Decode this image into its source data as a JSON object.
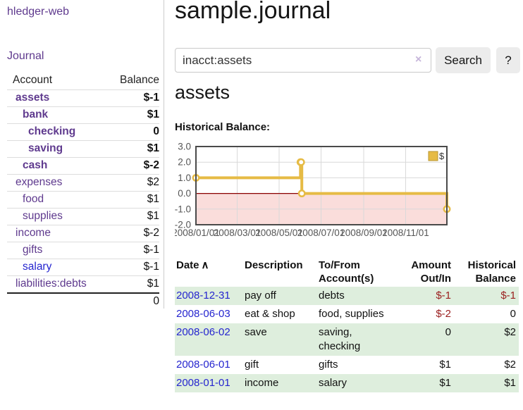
{
  "sidebar": {
    "brand": "hledger-web",
    "journal_link": "Journal",
    "accounts": {
      "header": {
        "account": "Account",
        "balance": "Balance"
      },
      "rows": [
        {
          "name": "assets",
          "balance": "$-1",
          "indent": 1,
          "bold": true,
          "balance_tone": "negative-strong"
        },
        {
          "name": "bank",
          "balance": "$1",
          "indent": 2,
          "bold": true,
          "balance_tone": "normal"
        },
        {
          "name": "checking",
          "balance": "0",
          "indent": 3,
          "bold": true,
          "balance_tone": "normal"
        },
        {
          "name": "saving",
          "balance": "$1",
          "indent": 3,
          "bold": true,
          "balance_tone": "normal"
        },
        {
          "name": "cash",
          "balance": "$-2",
          "indent": 2,
          "bold": true,
          "balance_tone": "negative-strong"
        },
        {
          "name": "expenses",
          "balance": "$2",
          "indent": 1,
          "bold": false,
          "balance_tone": "normal"
        },
        {
          "name": "food",
          "balance": "$1",
          "indent": 2,
          "bold": false,
          "balance_tone": "normal"
        },
        {
          "name": "supplies",
          "balance": "$1",
          "indent": 2,
          "bold": false,
          "balance_tone": "normal"
        },
        {
          "name": "income",
          "balance": "$-2",
          "indent": 1,
          "bold": false,
          "balance_tone": "negative-muted"
        },
        {
          "name": "gifts",
          "balance": "$-1",
          "indent": 2,
          "bold": false,
          "balance_tone": "negative-muted"
        },
        {
          "name": "salary",
          "balance": "$-1",
          "indent": 2,
          "bold": false,
          "balance_tone": "negative-muted",
          "link_tone": "blue"
        },
        {
          "name": "liabilities:debts",
          "balance": "$1",
          "indent": 1,
          "bold": false,
          "balance_tone": "normal"
        }
      ],
      "total": "0"
    }
  },
  "main": {
    "title": "sample.journal",
    "search": {
      "value": "inacct:assets",
      "clear_icon": "×",
      "search_button": "Search",
      "help_button": "?"
    },
    "account_heading": "assets",
    "chart_title": "Historical Balance:"
  },
  "chart_data": {
    "type": "line",
    "step": true,
    "title": "Historical Balance:",
    "x_range": [
      "2008-01-01",
      "2008-12-31"
    ],
    "ylim": [
      -2,
      3
    ],
    "y_ticks": [
      {
        "value": 3,
        "label": "3.0"
      },
      {
        "value": 2,
        "label": "2.0"
      },
      {
        "value": 1,
        "label": "1.0"
      },
      {
        "value": 0,
        "label": "0.0"
      },
      {
        "value": -1,
        "label": "-1.0"
      },
      {
        "value": -2,
        "label": "-2.0"
      }
    ],
    "x_ticks": [
      {
        "date": "2008-01-01",
        "label": "2008/01/01"
      },
      {
        "date": "2008-03-01",
        "label": "2008/03/01"
      },
      {
        "date": "2008-05-01",
        "label": "2008/05/01"
      },
      {
        "date": "2008-07-01",
        "label": "2008/07/01"
      },
      {
        "date": "2008-09-01",
        "label": "2008/09/01"
      },
      {
        "date": "2008-11-01",
        "label": "2008/11/01"
      }
    ],
    "series": [
      {
        "name": "$",
        "points": [
          [
            "2008-01-01",
            1
          ],
          [
            "2008-06-01",
            2
          ],
          [
            "2008-06-02",
            2
          ],
          [
            "2008-06-03",
            0
          ],
          [
            "2008-12-31",
            -1
          ]
        ]
      }
    ],
    "legend": [
      {
        "label": "$",
        "color": "#e6bb45"
      }
    ],
    "colors": {
      "line": "#e6bb45",
      "marker_fill": "#ffffff",
      "negative_region": "#fadddb",
      "zero_line": "#8b0000",
      "grid": "#d9d9d9",
      "border": "#4a4a4a",
      "legend_border": "#b8962e"
    },
    "grid": true,
    "legend_position": "top-right"
  },
  "transactions": {
    "headers": {
      "date": "Date",
      "sort_indicator": "∧",
      "description": "Description",
      "accounts": "To/From Account(s)",
      "amount": "Amount Out/In",
      "balance": "Historical Balance"
    },
    "rows": [
      {
        "date": "2008-12-31",
        "description": "pay off",
        "accounts": "debts",
        "amount": "$-1",
        "amount_negative": true,
        "balance": "$-1",
        "balance_negative": true
      },
      {
        "date": "2008-06-03",
        "description": "eat & shop",
        "accounts": "food, supplies",
        "amount": "$-2",
        "amount_negative": true,
        "balance": "0",
        "balance_negative": false
      },
      {
        "date": "2008-06-02",
        "description": "save",
        "accounts": "saving, checking",
        "amount": "0",
        "amount_negative": false,
        "balance": "$2",
        "balance_negative": false
      },
      {
        "date": "2008-06-01",
        "description": "gift",
        "accounts": "gifts",
        "amount": "$1",
        "amount_negative": false,
        "balance": "$2",
        "balance_negative": false
      },
      {
        "date": "2008-01-01",
        "description": "income",
        "accounts": "salary",
        "amount": "$1",
        "amount_negative": false,
        "balance": "$1",
        "balance_negative": false
      }
    ]
  },
  "colors": {
    "link_purple": "#5f3a8e",
    "link_blue": "#2525cf",
    "negative_strong": "#941f1f",
    "negative_muted": "#c08484",
    "row_stripe_green": "#deeedd",
    "accent_gold": "#e6bb45"
  }
}
